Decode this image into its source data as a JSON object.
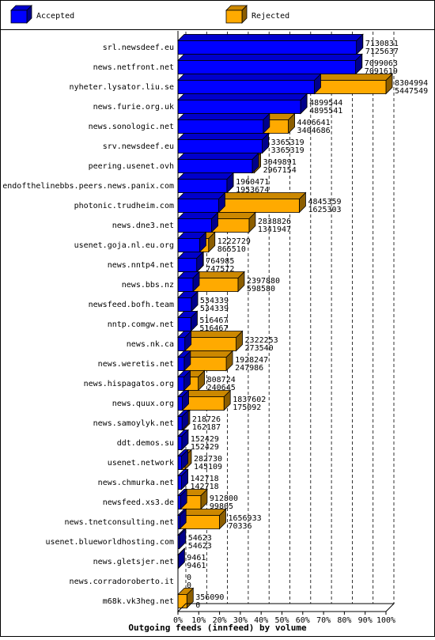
{
  "chart_data": {
    "type": "bar",
    "orientation": "horizontal",
    "stacked_overlap": true,
    "title": "Outgoing feeds (innfeed) by volume",
    "legend_placement": "top",
    "grid": true,
    "xlim": [
      0,
      100
    ],
    "x_ticks": [
      "0%",
      "10%",
      "20%",
      "30%",
      "40%",
      "50%",
      "60%",
      "70%",
      "80%",
      "90%",
      "100%"
    ],
    "colors": {
      "accepted": "#0000ff",
      "rejected": "#ffaa00"
    },
    "series": [
      {
        "name": "Accepted",
        "color_key": "accepted"
      },
      {
        "name": "Rejected",
        "color_key": "rejected"
      }
    ],
    "categories": [
      "srl.newsdeef.eu",
      "news.netfront.net",
      "nyheter.lysator.liu.se",
      "news.furie.org.uk",
      "news.sonologic.net",
      "srv.newsdeef.eu",
      "peering.usenet.ovh",
      "endofthelinebbs.peers.news.panix.com",
      "photonic.trudheim.com",
      "news.dne3.net",
      "usenet.goja.nl.eu.org",
      "news.nntp4.net",
      "news.bbs.nz",
      "newsfeed.bofh.team",
      "nntp.comgw.net",
      "news.nk.ca",
      "news.weretis.net",
      "news.hispagatos.org",
      "news.quux.org",
      "news.samoylyk.net",
      "ddt.demos.su",
      "usenet.network",
      "news.chmurka.net",
      "newsfeed.xs3.de",
      "news.tnetconsulting.net",
      "usenet.blueworldhosting.com",
      "news.gletsjer.net",
      "news.corradoroberto.it",
      "m68k.vk3heg.net"
    ],
    "offered_labels": [
      "7130831",
      "7099063",
      "8304994",
      "4899544",
      "4406641",
      "3365319",
      "3049891",
      "1960471",
      "4845359",
      "2838826",
      "1222729",
      "764985",
      "2397880",
      "534339",
      "516467",
      "2322253",
      "1928247",
      "808724",
      "1837602",
      "218726",
      "152429",
      "282730",
      "142718",
      "912800",
      "1656933",
      "54623",
      "9461",
      "0",
      "356090"
    ],
    "accepted_labels": [
      "7125637",
      "7091619",
      "5447549",
      "4895541",
      "3404686",
      "3365319",
      "2967154",
      "1953674",
      "1625303",
      "1341947",
      "865510",
      "747572",
      "598580",
      "534339",
      "516467",
      "273540",
      "247986",
      "240645",
      "175092",
      "162187",
      "152429",
      "145109",
      "142718",
      "99805",
      "70336",
      "54623",
      "9461",
      "0",
      "0"
    ],
    "offered": [
      7130831,
      7099063,
      8304994,
      4899544,
      4406641,
      3365319,
      3049891,
      1960471,
      4845359,
      2838826,
      1222729,
      764985,
      2397880,
      534339,
      516467,
      2322253,
      1928247,
      808724,
      1837602,
      218726,
      152429,
      282730,
      142718,
      912800,
      1656933,
      54623,
      9461,
      0,
      356090
    ],
    "accepted": [
      7125637,
      7091619,
      5447549,
      4895541,
      3404686,
      3365319,
      2967154,
      1953674,
      1625303,
      1341947,
      865510,
      747572,
      598580,
      534339,
      516467,
      273540,
      247986,
      240645,
      175092,
      162187,
      152429,
      145109,
      142718,
      99805,
      70336,
      54623,
      9461,
      0,
      0
    ]
  }
}
